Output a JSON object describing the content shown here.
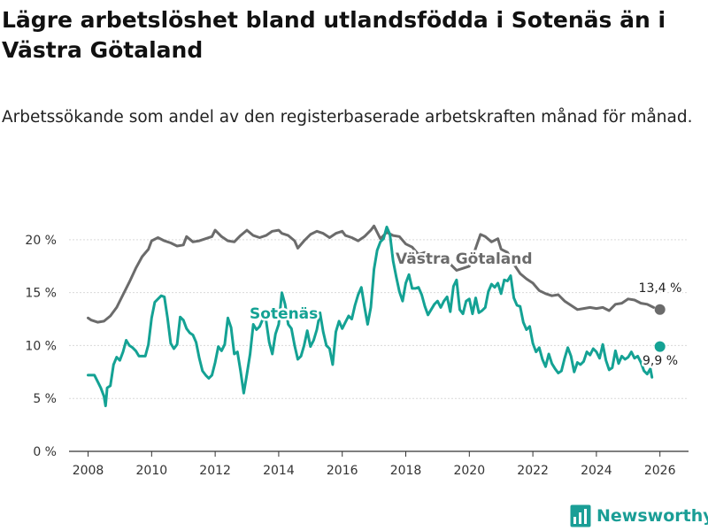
{
  "title": "Lägre arbetslöshet bland utlandsfödda i Sotenäs än i Västra Götaland",
  "subtitle": "Arbetssökande som andel av den registerbaserade arbetskraften månad för månad.",
  "brand": "Newsworthy",
  "colors": {
    "sotenas": "#14a294",
    "vg": "#6b6b6b",
    "grid": "#d9d9d9",
    "axis": "#333333"
  },
  "chart_data": {
    "type": "line",
    "title": "Lägre arbetslöshet bland utlandsfödda i Sotenäs än i Västra Götaland",
    "xlabel": "",
    "ylabel": "",
    "xlim": [
      2007.4,
      2026.9
    ],
    "ylim": [
      0,
      23
    ],
    "x_ticks": [
      2008,
      2010,
      2012,
      2014,
      2016,
      2018,
      2020,
      2022,
      2024,
      2026
    ],
    "x_tick_labels": [
      "2008",
      "2010",
      "2012",
      "2014",
      "2016",
      "2018",
      "2020",
      "2022",
      "2024",
      "2026"
    ],
    "y_ticks": [
      0,
      5,
      10,
      15,
      20
    ],
    "y_tick_labels": [
      "0 %",
      "5 %",
      "10 %",
      "15 %",
      "20 %"
    ],
    "grid": "horizontal",
    "series": [
      {
        "name": "Västra Götaland",
        "color": "#6b6b6b",
        "label": "Västra Götaland",
        "end_label": "13,4 %",
        "end_point": [
          2026.0,
          13.4
        ],
        "points": [
          [
            2008.0,
            12.6
          ],
          [
            2008.1,
            12.4
          ],
          [
            2008.3,
            12.2
          ],
          [
            2008.5,
            12.3
          ],
          [
            2008.7,
            12.8
          ],
          [
            2008.9,
            13.6
          ],
          [
            2009.1,
            14.8
          ],
          [
            2009.3,
            16.0
          ],
          [
            2009.5,
            17.3
          ],
          [
            2009.7,
            18.4
          ],
          [
            2009.9,
            19.1
          ],
          [
            2010.0,
            19.9
          ],
          [
            2010.2,
            20.2
          ],
          [
            2010.4,
            19.9
          ],
          [
            2010.6,
            19.7
          ],
          [
            2010.8,
            19.4
          ],
          [
            2011.0,
            19.5
          ],
          [
            2011.1,
            20.3
          ],
          [
            2011.3,
            19.8
          ],
          [
            2011.5,
            19.9
          ],
          [
            2011.7,
            20.1
          ],
          [
            2011.9,
            20.3
          ],
          [
            2012.0,
            20.9
          ],
          [
            2012.2,
            20.3
          ],
          [
            2012.4,
            19.9
          ],
          [
            2012.6,
            19.8
          ],
          [
            2012.8,
            20.4
          ],
          [
            2013.0,
            20.9
          ],
          [
            2013.2,
            20.4
          ],
          [
            2013.4,
            20.2
          ],
          [
            2013.6,
            20.4
          ],
          [
            2013.8,
            20.8
          ],
          [
            2014.0,
            20.9
          ],
          [
            2014.1,
            20.6
          ],
          [
            2014.3,
            20.4
          ],
          [
            2014.5,
            19.9
          ],
          [
            2014.6,
            19.2
          ],
          [
            2014.8,
            19.9
          ],
          [
            2015.0,
            20.5
          ],
          [
            2015.2,
            20.8
          ],
          [
            2015.4,
            20.6
          ],
          [
            2015.6,
            20.2
          ],
          [
            2015.8,
            20.6
          ],
          [
            2016.0,
            20.8
          ],
          [
            2016.1,
            20.4
          ],
          [
            2016.3,
            20.2
          ],
          [
            2016.5,
            19.9
          ],
          [
            2016.7,
            20.3
          ],
          [
            2016.9,
            20.9
          ],
          [
            2017.0,
            21.3
          ],
          [
            2017.2,
            20.1
          ],
          [
            2017.4,
            20.7
          ],
          [
            2017.6,
            20.4
          ],
          [
            2017.8,
            20.3
          ],
          [
            2018.0,
            19.6
          ],
          [
            2018.2,
            19.3
          ],
          [
            2018.4,
            18.6
          ],
          [
            2018.6,
            18.8
          ],
          [
            2018.8,
            18.4
          ],
          [
            2019.0,
            18.2
          ],
          [
            2019.2,
            18.0
          ],
          [
            2019.4,
            17.7
          ],
          [
            2019.6,
            17.1
          ],
          [
            2019.8,
            17.3
          ],
          [
            2020.0,
            17.5
          ],
          [
            2020.2,
            19.2
          ],
          [
            2020.35,
            20.5
          ],
          [
            2020.5,
            20.3
          ],
          [
            2020.7,
            19.8
          ],
          [
            2020.9,
            20.1
          ],
          [
            2021.0,
            19.1
          ],
          [
            2021.2,
            18.8
          ],
          [
            2021.4,
            17.7
          ],
          [
            2021.6,
            16.8
          ],
          [
            2021.8,
            16.3
          ],
          [
            2022.0,
            15.9
          ],
          [
            2022.2,
            15.2
          ],
          [
            2022.4,
            14.9
          ],
          [
            2022.6,
            14.7
          ],
          [
            2022.8,
            14.8
          ],
          [
            2023.0,
            14.2
          ],
          [
            2023.2,
            13.8
          ],
          [
            2023.4,
            13.4
          ],
          [
            2023.6,
            13.5
          ],
          [
            2023.8,
            13.6
          ],
          [
            2024.0,
            13.5
          ],
          [
            2024.2,
            13.6
          ],
          [
            2024.4,
            13.3
          ],
          [
            2024.6,
            13.9
          ],
          [
            2024.8,
            14.0
          ],
          [
            2025.0,
            14.4
          ],
          [
            2025.2,
            14.3
          ],
          [
            2025.4,
            14.0
          ],
          [
            2025.6,
            13.9
          ],
          [
            2025.8,
            13.6
          ]
        ]
      },
      {
        "name": "Sotenäs",
        "color": "#14a294",
        "label": "Sotenäs",
        "end_label": "9,9 %",
        "end_point": [
          2026.0,
          9.9
        ],
        "points": [
          [
            2008.0,
            7.2
          ],
          [
            2008.1,
            7.2
          ],
          [
            2008.2,
            7.2
          ],
          [
            2008.3,
            6.6
          ],
          [
            2008.4,
            6.0
          ],
          [
            2008.5,
            5.2
          ],
          [
            2008.55,
            4.3
          ],
          [
            2008.6,
            6.0
          ],
          [
            2008.7,
            6.2
          ],
          [
            2008.8,
            8.2
          ],
          [
            2008.9,
            8.9
          ],
          [
            2009.0,
            8.6
          ],
          [
            2009.1,
            9.4
          ],
          [
            2009.2,
            10.5
          ],
          [
            2009.3,
            10.0
          ],
          [
            2009.4,
            9.8
          ],
          [
            2009.5,
            9.5
          ],
          [
            2009.6,
            9.0
          ],
          [
            2009.8,
            9.0
          ],
          [
            2009.9,
            10.1
          ],
          [
            2010.0,
            12.6
          ],
          [
            2010.1,
            14.1
          ],
          [
            2010.2,
            14.4
          ],
          [
            2010.3,
            14.7
          ],
          [
            2010.4,
            14.6
          ],
          [
            2010.5,
            12.6
          ],
          [
            2010.6,
            10.2
          ],
          [
            2010.7,
            9.7
          ],
          [
            2010.8,
            10.1
          ],
          [
            2010.9,
            12.7
          ],
          [
            2011.0,
            12.4
          ],
          [
            2011.1,
            11.6
          ],
          [
            2011.2,
            11.2
          ],
          [
            2011.3,
            11.0
          ],
          [
            2011.4,
            10.3
          ],
          [
            2011.5,
            8.8
          ],
          [
            2011.6,
            7.6
          ],
          [
            2011.7,
            7.2
          ],
          [
            2011.8,
            6.9
          ],
          [
            2011.9,
            7.2
          ],
          [
            2012.0,
            8.4
          ],
          [
            2012.1,
            9.9
          ],
          [
            2012.2,
            9.5
          ],
          [
            2012.3,
            10.1
          ],
          [
            2012.4,
            12.6
          ],
          [
            2012.5,
            11.7
          ],
          [
            2012.6,
            9.2
          ],
          [
            2012.7,
            9.4
          ],
          [
            2012.8,
            7.6
          ],
          [
            2012.9,
            5.5
          ],
          [
            2013.0,
            7.3
          ],
          [
            2013.1,
            9.2
          ],
          [
            2013.2,
            12.0
          ],
          [
            2013.3,
            11.5
          ],
          [
            2013.4,
            11.8
          ],
          [
            2013.5,
            12.5
          ],
          [
            2013.6,
            12.4
          ],
          [
            2013.7,
            10.3
          ],
          [
            2013.8,
            9.2
          ],
          [
            2013.9,
            11.1
          ],
          [
            2014.0,
            12.0
          ],
          [
            2014.1,
            15.0
          ],
          [
            2014.2,
            13.9
          ],
          [
            2014.3,
            12.0
          ],
          [
            2014.4,
            11.6
          ],
          [
            2014.5,
            10.0
          ],
          [
            2014.6,
            8.7
          ],
          [
            2014.7,
            9.0
          ],
          [
            2014.8,
            10.0
          ],
          [
            2014.9,
            11.4
          ],
          [
            2015.0,
            9.9
          ],
          [
            2015.1,
            10.5
          ],
          [
            2015.2,
            11.5
          ],
          [
            2015.3,
            13.1
          ],
          [
            2015.4,
            11.3
          ],
          [
            2015.5,
            10.0
          ],
          [
            2015.6,
            9.7
          ],
          [
            2015.7,
            8.2
          ],
          [
            2015.8,
            11.3
          ],
          [
            2015.9,
            12.3
          ],
          [
            2016.0,
            11.6
          ],
          [
            2016.1,
            12.2
          ],
          [
            2016.2,
            12.8
          ],
          [
            2016.3,
            12.5
          ],
          [
            2016.4,
            13.8
          ],
          [
            2016.5,
            14.8
          ],
          [
            2016.6,
            15.5
          ],
          [
            2016.7,
            13.7
          ],
          [
            2016.8,
            12.0
          ],
          [
            2016.9,
            13.6
          ],
          [
            2017.0,
            17.2
          ],
          [
            2017.1,
            19.0
          ],
          [
            2017.2,
            19.8
          ],
          [
            2017.3,
            20.1
          ],
          [
            2017.4,
            21.2
          ],
          [
            2017.5,
            20.5
          ],
          [
            2017.6,
            18.0
          ],
          [
            2017.7,
            16.5
          ],
          [
            2017.8,
            15.1
          ],
          [
            2017.9,
            14.2
          ],
          [
            2018.0,
            15.9
          ],
          [
            2018.1,
            16.7
          ],
          [
            2018.2,
            15.4
          ],
          [
            2018.3,
            15.4
          ],
          [
            2018.4,
            15.5
          ],
          [
            2018.5,
            14.8
          ],
          [
            2018.6,
            13.7
          ],
          [
            2018.7,
            12.9
          ],
          [
            2018.8,
            13.4
          ],
          [
            2018.9,
            13.9
          ],
          [
            2019.0,
            14.2
          ],
          [
            2019.1,
            13.6
          ],
          [
            2019.2,
            14.2
          ],
          [
            2019.3,
            14.6
          ],
          [
            2019.4,
            13.2
          ],
          [
            2019.5,
            15.6
          ],
          [
            2019.6,
            16.2
          ],
          [
            2019.7,
            13.4
          ],
          [
            2019.8,
            13.0
          ],
          [
            2019.9,
            14.2
          ],
          [
            2020.0,
            14.4
          ],
          [
            2020.1,
            13.0
          ],
          [
            2020.2,
            14.5
          ],
          [
            2020.3,
            13.1
          ],
          [
            2020.4,
            13.3
          ],
          [
            2020.5,
            13.6
          ],
          [
            2020.6,
            15.1
          ],
          [
            2020.7,
            15.8
          ],
          [
            2020.8,
            15.5
          ],
          [
            2020.9,
            15.9
          ],
          [
            2021.0,
            14.9
          ],
          [
            2021.1,
            16.2
          ],
          [
            2021.2,
            16.1
          ],
          [
            2021.3,
            16.6
          ],
          [
            2021.4,
            14.5
          ],
          [
            2021.5,
            13.8
          ],
          [
            2021.6,
            13.7
          ],
          [
            2021.7,
            12.2
          ],
          [
            2021.8,
            11.5
          ],
          [
            2021.9,
            11.8
          ],
          [
            2022.0,
            10.2
          ],
          [
            2022.1,
            9.4
          ],
          [
            2022.2,
            9.8
          ],
          [
            2022.3,
            8.7
          ],
          [
            2022.4,
            8.0
          ],
          [
            2022.5,
            9.2
          ],
          [
            2022.6,
            8.3
          ],
          [
            2022.7,
            7.8
          ],
          [
            2022.8,
            7.4
          ],
          [
            2022.9,
            7.6
          ],
          [
            2023.0,
            8.8
          ],
          [
            2023.1,
            9.8
          ],
          [
            2023.2,
            9.0
          ],
          [
            2023.3,
            7.5
          ],
          [
            2023.4,
            8.4
          ],
          [
            2023.5,
            8.2
          ],
          [
            2023.6,
            8.5
          ],
          [
            2023.7,
            9.4
          ],
          [
            2023.8,
            9.1
          ],
          [
            2023.9,
            9.7
          ],
          [
            2024.0,
            9.4
          ],
          [
            2024.1,
            8.8
          ],
          [
            2024.2,
            10.1
          ],
          [
            2024.3,
            8.6
          ],
          [
            2024.4,
            7.7
          ],
          [
            2024.5,
            7.9
          ],
          [
            2024.6,
            9.5
          ],
          [
            2024.7,
            8.3
          ],
          [
            2024.8,
            9.0
          ],
          [
            2024.9,
            8.7
          ],
          [
            2025.0,
            8.9
          ],
          [
            2025.1,
            9.4
          ],
          [
            2025.2,
            8.8
          ],
          [
            2025.3,
            9.0
          ],
          [
            2025.4,
            8.4
          ],
          [
            2025.5,
            7.6
          ],
          [
            2025.6,
            7.3
          ],
          [
            2025.7,
            7.8
          ],
          [
            2025.75,
            7.0
          ]
        ]
      }
    ]
  }
}
